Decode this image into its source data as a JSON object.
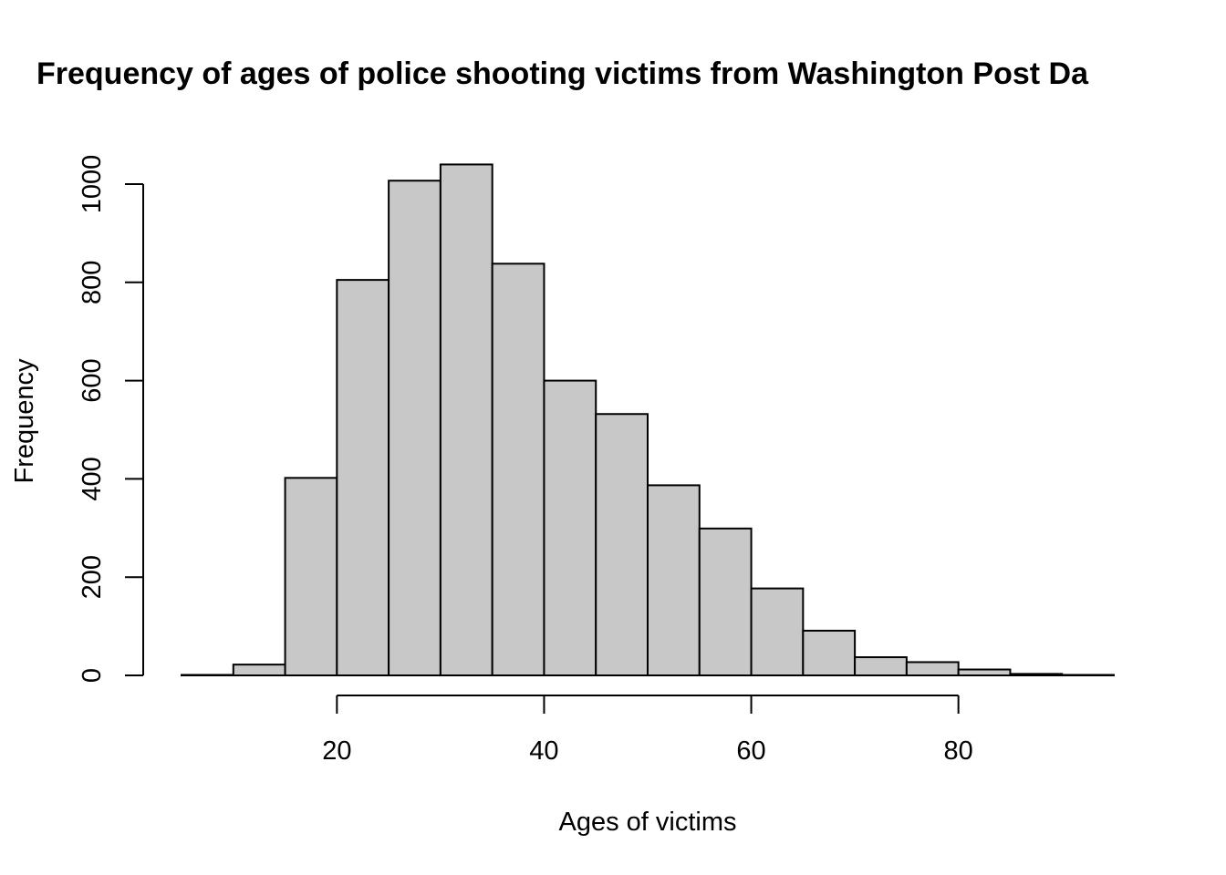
{
  "chart_data": {
    "type": "bar",
    "title": "Frequency of ages of police shooting victims from Washington Post Da",
    "xlabel": "Ages of victims",
    "ylabel": "Frequency",
    "bins": [
      {
        "from": 5,
        "to": 10,
        "count": 1
      },
      {
        "from": 10,
        "to": 15,
        "count": 22
      },
      {
        "from": 15,
        "to": 20,
        "count": 402
      },
      {
        "from": 20,
        "to": 25,
        "count": 805
      },
      {
        "from": 25,
        "to": 30,
        "count": 1007
      },
      {
        "from": 30,
        "to": 35,
        "count": 1040
      },
      {
        "from": 35,
        "to": 40,
        "count": 838
      },
      {
        "from": 40,
        "to": 45,
        "count": 600
      },
      {
        "from": 45,
        "to": 50,
        "count": 532
      },
      {
        "from": 50,
        "to": 55,
        "count": 387
      },
      {
        "from": 55,
        "to": 60,
        "count": 299
      },
      {
        "from": 60,
        "to": 65,
        "count": 177
      },
      {
        "from": 65,
        "to": 70,
        "count": 91
      },
      {
        "from": 70,
        "to": 75,
        "count": 37
      },
      {
        "from": 75,
        "to": 80,
        "count": 27
      },
      {
        "from": 80,
        "to": 85,
        "count": 12
      },
      {
        "from": 85,
        "to": 90,
        "count": 3
      },
      {
        "from": 90,
        "to": 95,
        "count": 1
      }
    ],
    "x_ticks": [
      20,
      40,
      60,
      80
    ],
    "y_ticks": [
      0,
      200,
      400,
      600,
      800,
      1000
    ],
    "xlim": [
      5,
      95
    ],
    "ylim": [
      0,
      1040
    ],
    "bar_color": "#c8c8c8",
    "grid": false,
    "legend": false
  }
}
